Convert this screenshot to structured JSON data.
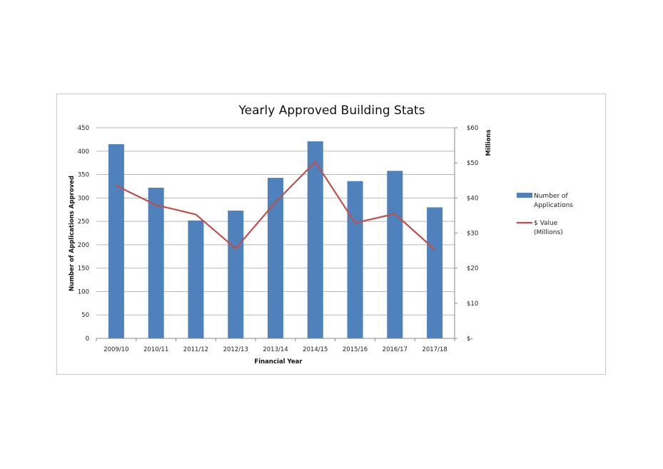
{
  "chart_data": {
    "type": "bar",
    "title": "Yearly Approved Building Stats",
    "xlabel": "Financial Year",
    "ylabel": "Number of Applications Approved",
    "y2label": "Millions",
    "categories": [
      "2009/10",
      "2010/11",
      "2011/12",
      "2012/13",
      "2013/14",
      "2014/15",
      "2015/16",
      "2016/17",
      "2017/18"
    ],
    "ylim": [
      0,
      450
    ],
    "yticks": [
      0,
      50,
      100,
      150,
      200,
      250,
      300,
      350,
      400,
      450
    ],
    "y2lim": [
      0,
      60
    ],
    "y2ticks": [
      0,
      10,
      20,
      30,
      40,
      50,
      60
    ],
    "y2ticklabels": [
      "$-",
      "$10",
      "$20",
      "$30",
      "$40",
      "$50",
      "$60"
    ],
    "grid": true,
    "legend_position": "right",
    "series": [
      {
        "name": "Number of Applications",
        "type": "bar",
        "axis": "left",
        "color": "#4f81bd",
        "values": [
          415,
          322,
          252,
          273,
          343,
          421,
          336,
          358,
          280
        ]
      },
      {
        "name": "$ Value (Millions)",
        "type": "line",
        "axis": "right",
        "color": "#c0504d",
        "values": [
          43.5,
          38,
          35.3,
          25.6,
          38.8,
          50.3,
          32.9,
          35.5,
          25.3
        ]
      }
    ],
    "legend": [
      {
        "lines": [
          "Number of",
          "Applications"
        ]
      },
      {
        "lines": [
          "$ Value",
          "(Millions)"
        ]
      }
    ]
  }
}
